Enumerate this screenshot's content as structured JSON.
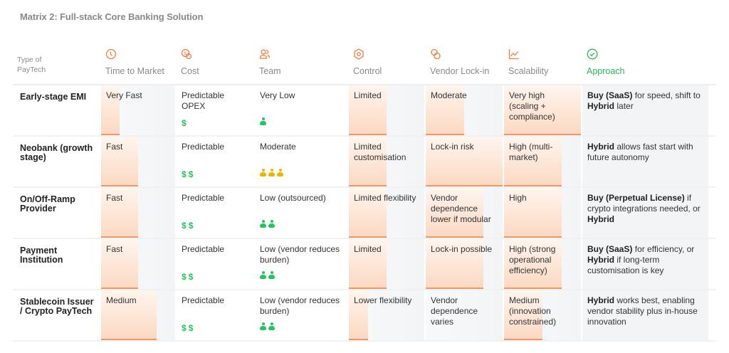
{
  "title": "Matrix 2: Full-stack Core Banking Solution",
  "colors": {
    "accent": "#ef7d3c",
    "approach": "#2db45a",
    "cost_icon": "#22c55e",
    "team_low": "#22c55e",
    "team_moderate": "#f0b400"
  },
  "headers": [
    {
      "label": "Type of PayTech",
      "icon": ""
    },
    {
      "label": "Time to Market",
      "icon": "clock-icon"
    },
    {
      "label": "Cost",
      "icon": "coins-icon"
    },
    {
      "label": "Team",
      "icon": "users-icon"
    },
    {
      "label": "Control",
      "icon": "hexagon-gear-icon"
    },
    {
      "label": "Vendor Lock-in",
      "icon": "link-icon"
    },
    {
      "label": "Scalability",
      "icon": "chart-line-icon"
    },
    {
      "label": "Approach",
      "icon": "check-circle-icon"
    }
  ],
  "rows": [
    {
      "name": "Early-stage EMI",
      "time": {
        "text": "Very Fast",
        "level": 0.25
      },
      "cost": {
        "text": "Predictable OPEX",
        "dollars": 1
      },
      "team": {
        "text": "Very Low",
        "people": 1,
        "color": "#22c55e"
      },
      "control": {
        "text": "Limited",
        "level": 0.5
      },
      "vendor": {
        "text": "Moderate",
        "level": 0.5
      },
      "scal": {
        "text": "Very high (scaling + compliance)",
        "level": 1.0
      },
      "approach": [
        {
          "t": "Buy (SaaS)",
          "b": true
        },
        {
          "t": " for speed, shift to ",
          "b": false
        },
        {
          "t": "Hybrid",
          "b": true
        },
        {
          "t": " later",
          "b": false
        }
      ]
    },
    {
      "name": "Neobank (growth stage)",
      "time": {
        "text": "Fast",
        "level": 0.5
      },
      "cost": {
        "text": "Predictable",
        "dollars": 2
      },
      "team": {
        "text": "Moderate",
        "people": 3,
        "color": "#f0b400"
      },
      "control": {
        "text": "Limited customisation",
        "level": 0.5
      },
      "vendor": {
        "text": "Lock-in risk",
        "level": 1.0
      },
      "scal": {
        "text": "High (multi-market)",
        "level": 0.75
      },
      "approach": [
        {
          "t": "Hybrid",
          "b": true
        },
        {
          "t": " allows fast start with future autonomy",
          "b": false
        }
      ]
    },
    {
      "name": "On/Off-Ramp Provider",
      "time": {
        "text": "Fast",
        "level": 0.5
      },
      "cost": {
        "text": "Predictable",
        "dollars": 2
      },
      "team": {
        "text": "Low (outsourced)",
        "people": 2,
        "color": "#22c55e"
      },
      "control": {
        "text": "Limited flexibility",
        "level": 0.5
      },
      "vendor": {
        "text": "Vendor dependence lower if modular",
        "level": 0.75
      },
      "scal": {
        "text": "High",
        "level": 0.75
      },
      "approach": [
        {
          "t": "Buy (Perpetual License)",
          "b": true
        },
        {
          "t": " if crypto integrations needed, or ",
          "b": false
        },
        {
          "t": "Hybrid",
          "b": true
        }
      ]
    },
    {
      "name": "Payment Institution",
      "time": {
        "text": "Fast",
        "level": 0.5
      },
      "cost": {
        "text": "Predictable",
        "dollars": 2
      },
      "team": {
        "text": "Low (vendor reduces burden)",
        "people": 2,
        "color": "#22c55e"
      },
      "control": {
        "text": "Limited",
        "level": 0.5
      },
      "vendor": {
        "text": "Lock-in possible",
        "level": 0.75
      },
      "scal": {
        "text": "High (strong operational efficiency)",
        "level": 0.75
      },
      "approach": [
        {
          "t": "Buy (SaaS)",
          "b": true
        },
        {
          "t": " for efficiency, or ",
          "b": false
        },
        {
          "t": "Hybrid",
          "b": true
        },
        {
          "t": " if long-term customisation is key",
          "b": false
        }
      ]
    },
    {
      "name": "Stablecoin Issuer / Crypto PayTech",
      "time": {
        "text": "Medium",
        "level": 0.75
      },
      "cost": {
        "text": "Predictable",
        "dollars": 2
      },
      "team": {
        "text": "Low (vendor reduces burden)",
        "people": 2,
        "color": "#22c55e"
      },
      "control": {
        "text": "Lower flexibility",
        "level": 0.25
      },
      "vendor": {
        "text": "Vendor dependence varies",
        "level": 0
      },
      "scal": {
        "text": "Medium (innovation constrained)",
        "level": 0.5
      },
      "approach": [
        {
          "t": "Hybrid",
          "b": true
        },
        {
          "t": " works best, enabling vendor stability plus in-house innovation",
          "b": false
        }
      ]
    }
  ]
}
